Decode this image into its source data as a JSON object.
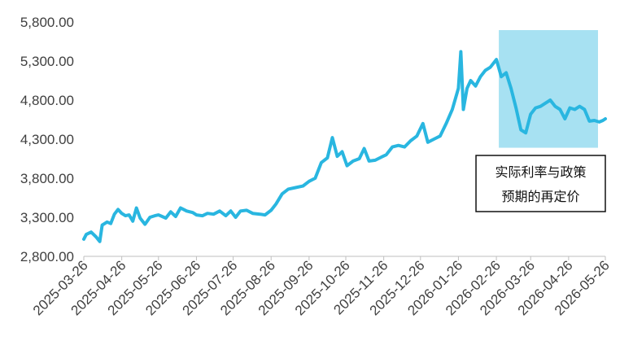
{
  "chart_data": {
    "type": "line",
    "title": "",
    "xlabel": "",
    "ylabel": "",
    "ylim": [
      2800,
      5800
    ],
    "y_ticks": [
      "2,800.00",
      "3,300.00",
      "3,800.00",
      "4,300.00",
      "4,800.00",
      "5,300.00",
      "5,800.00"
    ],
    "x_ticks": [
      "2025-03-26",
      "2025-04-26",
      "2025-05-26",
      "2025-06-26",
      "2025-07-26",
      "2025-08-26",
      "2025-09-26",
      "2025-10-26",
      "2025-11-26",
      "2025-12-26",
      "2026-01-26",
      "2026-02-26",
      "2026-03-26",
      "2026-04-26",
      "2026-05-26"
    ],
    "grid": false,
    "line_color": "#29b6e0",
    "series": [
      {
        "values": [
          {
            "x": "2025-03-26",
            "y": 3020
          },
          {
            "x": "2025-03-28",
            "y": 3080
          },
          {
            "x": "2025-04-01",
            "y": 3110
          },
          {
            "x": "2025-04-05",
            "y": 3050
          },
          {
            "x": "2025-04-08",
            "y": 2990
          },
          {
            "x": "2025-04-10",
            "y": 3200
          },
          {
            "x": "2025-04-14",
            "y": 3240
          },
          {
            "x": "2025-04-17",
            "y": 3220
          },
          {
            "x": "2025-04-20",
            "y": 3340
          },
          {
            "x": "2025-04-23",
            "y": 3400
          },
          {
            "x": "2025-04-26",
            "y": 3350
          },
          {
            "x": "2025-04-29",
            "y": 3320
          },
          {
            "x": "2025-05-02",
            "y": 3330
          },
          {
            "x": "2025-05-05",
            "y": 3250
          },
          {
            "x": "2025-05-08",
            "y": 3420
          },
          {
            "x": "2025-05-11",
            "y": 3290
          },
          {
            "x": "2025-05-15",
            "y": 3210
          },
          {
            "x": "2025-05-19",
            "y": 3300
          },
          {
            "x": "2025-05-23",
            "y": 3320
          },
          {
            "x": "2025-05-26",
            "y": 3330
          },
          {
            "x": "2025-06-01",
            "y": 3290
          },
          {
            "x": "2025-06-05",
            "y": 3370
          },
          {
            "x": "2025-06-09",
            "y": 3310
          },
          {
            "x": "2025-06-13",
            "y": 3420
          },
          {
            "x": "2025-06-18",
            "y": 3380
          },
          {
            "x": "2025-06-23",
            "y": 3360
          },
          {
            "x": "2025-06-26",
            "y": 3330
          },
          {
            "x": "2025-07-01",
            "y": 3320
          },
          {
            "x": "2025-07-05",
            "y": 3350
          },
          {
            "x": "2025-07-10",
            "y": 3340
          },
          {
            "x": "2025-07-15",
            "y": 3380
          },
          {
            "x": "2025-07-20",
            "y": 3320
          },
          {
            "x": "2025-07-24",
            "y": 3380
          },
          {
            "x": "2025-07-28",
            "y": 3300
          },
          {
            "x": "2025-08-01",
            "y": 3380
          },
          {
            "x": "2025-08-06",
            "y": 3390
          },
          {
            "x": "2025-08-11",
            "y": 3350
          },
          {
            "x": "2025-08-17",
            "y": 3340
          },
          {
            "x": "2025-08-21",
            "y": 3330
          },
          {
            "x": "2025-08-26",
            "y": 3390
          },
          {
            "x": "2025-08-30",
            "y": 3470
          },
          {
            "x": "2025-09-04",
            "y": 3600
          },
          {
            "x": "2025-09-09",
            "y": 3660
          },
          {
            "x": "2025-09-15",
            "y": 3680
          },
          {
            "x": "2025-09-21",
            "y": 3700
          },
          {
            "x": "2025-09-26",
            "y": 3760
          },
          {
            "x": "2025-10-01",
            "y": 3800
          },
          {
            "x": "2025-10-06",
            "y": 4000
          },
          {
            "x": "2025-10-11",
            "y": 4060
          },
          {
            "x": "2025-10-15",
            "y": 4320
          },
          {
            "x": "2025-10-19",
            "y": 4080
          },
          {
            "x": "2025-10-23",
            "y": 4140
          },
          {
            "x": "2025-10-27",
            "y": 3960
          },
          {
            "x": "2025-11-01",
            "y": 4020
          },
          {
            "x": "2025-11-06",
            "y": 4050
          },
          {
            "x": "2025-11-10",
            "y": 4180
          },
          {
            "x": "2025-11-14",
            "y": 4020
          },
          {
            "x": "2025-11-19",
            "y": 4030
          },
          {
            "x": "2025-11-24",
            "y": 4070
          },
          {
            "x": "2025-11-28",
            "y": 4100
          },
          {
            "x": "2025-12-03",
            "y": 4200
          },
          {
            "x": "2025-12-08",
            "y": 4220
          },
          {
            "x": "2025-12-13",
            "y": 4200
          },
          {
            "x": "2025-12-18",
            "y": 4280
          },
          {
            "x": "2025-12-23",
            "y": 4340
          },
          {
            "x": "2025-12-28",
            "y": 4500
          },
          {
            "x": "2026-01-01",
            "y": 4260
          },
          {
            "x": "2026-01-06",
            "y": 4300
          },
          {
            "x": "2026-01-11",
            "y": 4340
          },
          {
            "x": "2026-01-16",
            "y": 4500
          },
          {
            "x": "2026-01-21",
            "y": 4680
          },
          {
            "x": "2026-01-26",
            "y": 4950
          },
          {
            "x": "2026-01-28",
            "y": 5420
          },
          {
            "x": "2026-01-30",
            "y": 4680
          },
          {
            "x": "2026-02-02",
            "y": 4950
          },
          {
            "x": "2026-02-05",
            "y": 5050
          },
          {
            "x": "2026-02-09",
            "y": 4980
          },
          {
            "x": "2026-02-13",
            "y": 5100
          },
          {
            "x": "2026-02-17",
            "y": 5180
          },
          {
            "x": "2026-02-21",
            "y": 5220
          },
          {
            "x": "2026-02-26",
            "y": 5320
          },
          {
            "x": "2026-03-02",
            "y": 5100
          },
          {
            "x": "2026-03-06",
            "y": 5150
          },
          {
            "x": "2026-03-10",
            "y": 4950
          },
          {
            "x": "2026-03-14",
            "y": 4700
          },
          {
            "x": "2026-03-18",
            "y": 4420
          },
          {
            "x": "2026-03-22",
            "y": 4380
          },
          {
            "x": "2026-03-26",
            "y": 4620
          },
          {
            "x": "2026-03-30",
            "y": 4700
          },
          {
            "x": "2026-04-03",
            "y": 4720
          },
          {
            "x": "2026-04-07",
            "y": 4760
          },
          {
            "x": "2026-04-11",
            "y": 4800
          },
          {
            "x": "2026-04-15",
            "y": 4720
          },
          {
            "x": "2026-04-19",
            "y": 4680
          },
          {
            "x": "2026-04-23",
            "y": 4560
          },
          {
            "x": "2026-04-27",
            "y": 4700
          },
          {
            "x": "2026-05-01",
            "y": 4680
          },
          {
            "x": "2026-05-05",
            "y": 4720
          },
          {
            "x": "2026-05-09",
            "y": 4680
          },
          {
            "x": "2026-05-13",
            "y": 4530
          },
          {
            "x": "2026-05-17",
            "y": 4540
          },
          {
            "x": "2026-05-21",
            "y": 4520
          },
          {
            "x": "2026-05-24",
            "y": 4540
          },
          {
            "x": "2026-05-26",
            "y": 4560
          }
        ]
      }
    ],
    "highlight": {
      "x_start": "2026-02-28",
      "x_end": "2026-05-20",
      "y_start": 4190,
      "y_end": 5800,
      "color": "#a7e1f2"
    },
    "annotation": {
      "lines": [
        "实际利率与政策",
        "预期的再定价"
      ],
      "x_start": "2026-02-16",
      "x_end": "2026-05-26"
    }
  }
}
